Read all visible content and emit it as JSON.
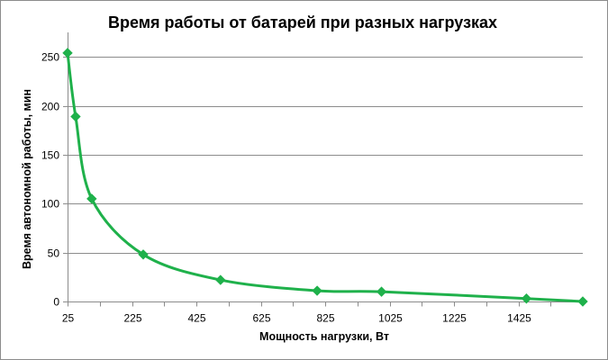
{
  "chart_data": {
    "type": "line",
    "title": "Время работы  от батарей  при разных  нагрузках",
    "xlabel": "Мощность нагрузки, Вт",
    "ylabel": "Время автономной работы, мин",
    "x_ticks": [
      25,
      225,
      425,
      625,
      825,
      1025,
      1225,
      1425
    ],
    "y_ticks": [
      0,
      50,
      100,
      150,
      200,
      250
    ],
    "xlim": [
      25,
      1625
    ],
    "ylim": [
      0,
      275
    ],
    "grid": "horizontal",
    "legend": "none",
    "series": [
      {
        "color": "#1fb14b",
        "marker": "diamond",
        "smooth": true,
        "x": [
          25,
          50,
          100,
          260,
          500,
          800,
          1000,
          1450,
          1625
        ],
        "y": [
          254,
          189,
          105,
          48,
          22,
          11,
          10,
          3,
          0
        ]
      }
    ]
  }
}
